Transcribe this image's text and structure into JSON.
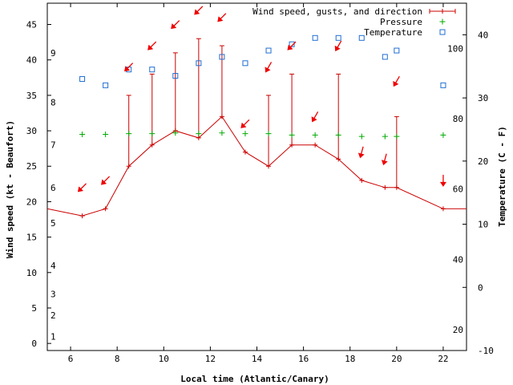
{
  "chart_data": {
    "type": "line",
    "xlabel": "Local time (Atlantic/Canary)",
    "ylabel": "Wind speed (kt - Beaufort)",
    "y2label": "Temperature (C - F)",
    "xlim": [
      5,
      23
    ],
    "ylim": [
      -1,
      48
    ],
    "y2lim": [
      -10,
      45
    ],
    "x_ticks": [
      6,
      8,
      10,
      12,
      14,
      16,
      18,
      20,
      22
    ],
    "y_ticks": [
      0,
      5,
      10,
      15,
      20,
      25,
      30,
      35,
      40,
      45
    ],
    "y2_ticks": [
      -10,
      0,
      10,
      20,
      30,
      40
    ],
    "beaufort_labels": [
      {
        "label": "1",
        "kt": 1
      },
      {
        "label": "2",
        "kt": 4
      },
      {
        "label": "3",
        "kt": 7
      },
      {
        "label": "4",
        "kt": 11
      },
      {
        "label": "5",
        "kt": 17
      },
      {
        "label": "6",
        "kt": 22
      },
      {
        "label": "7",
        "kt": 28
      },
      {
        "label": "8",
        "kt": 34
      },
      {
        "label": "9",
        "kt": 41
      }
    ],
    "fahrenheit_labels": [
      {
        "label": "20",
        "c": -6.7
      },
      {
        "label": "40",
        "c": 4.4
      },
      {
        "label": "60",
        "c": 15.6
      },
      {
        "label": "80",
        "c": 26.7
      },
      {
        "label": "100",
        "c": 37.8
      }
    ],
    "legend": {
      "position": "top-right",
      "entries": [
        "Wind speed, gusts, and direction",
        "Pressure",
        "Temperature"
      ]
    },
    "colors": {
      "wind": "#cc0000",
      "arrow": "#ee0000",
      "pressure": "#00aa00",
      "temperature": "#1f6fd4",
      "axis": "#000000"
    },
    "series": [
      {
        "name": "Wind speed, gusts, and direction",
        "points": [
          {
            "x": 5.0,
            "y": 19
          },
          {
            "x": 6.5,
            "y": 18
          },
          {
            "x": 7.5,
            "y": 19
          },
          {
            "x": 8.5,
            "y": 25,
            "gust": 35
          },
          {
            "x": 9.5,
            "y": 28,
            "gust": 38
          },
          {
            "x": 10.5,
            "y": 30,
            "gust": 41
          },
          {
            "x": 11.5,
            "y": 29,
            "gust": 43
          },
          {
            "x": 12.5,
            "y": 32,
            "gust": 42
          },
          {
            "x": 13.5,
            "y": 27
          },
          {
            "x": 14.5,
            "y": 25,
            "gust": 35
          },
          {
            "x": 15.5,
            "y": 28,
            "gust": 38
          },
          {
            "x": 16.5,
            "y": 28
          },
          {
            "x": 17.5,
            "y": 26,
            "gust": 38
          },
          {
            "x": 18.5,
            "y": 23
          },
          {
            "x": 19.5,
            "y": 22
          },
          {
            "x": 20.0,
            "y": 22,
            "gust": 32
          },
          {
            "x": 22.0,
            "y": 19
          },
          {
            "x": 23.0,
            "y": 19
          }
        ]
      },
      {
        "name": "Pressure",
        "points": [
          {
            "x": 6.5,
            "y": 29.5
          },
          {
            "x": 7.5,
            "y": 29.5
          },
          {
            "x": 8.5,
            "y": 29.6
          },
          {
            "x": 9.5,
            "y": 29.6
          },
          {
            "x": 10.5,
            "y": 29.7
          },
          {
            "x": 11.5,
            "y": 29.6
          },
          {
            "x": 12.5,
            "y": 29.7
          },
          {
            "x": 13.5,
            "y": 29.6
          },
          {
            "x": 14.5,
            "y": 29.6
          },
          {
            "x": 15.5,
            "y": 29.4
          },
          {
            "x": 16.5,
            "y": 29.4
          },
          {
            "x": 17.5,
            "y": 29.4
          },
          {
            "x": 18.5,
            "y": 29.2
          },
          {
            "x": 19.5,
            "y": 29.2
          },
          {
            "x": 20.0,
            "y": 29.2
          },
          {
            "x": 22.0,
            "y": 29.4
          }
        ]
      },
      {
        "name": "Temperature",
        "points": [
          {
            "x": 6.5,
            "y": 33
          },
          {
            "x": 7.5,
            "y": 32
          },
          {
            "x": 8.5,
            "y": 34.5
          },
          {
            "x": 9.5,
            "y": 34.5
          },
          {
            "x": 10.5,
            "y": 33.5
          },
          {
            "x": 11.5,
            "y": 35.5
          },
          {
            "x": 12.5,
            "y": 36.5
          },
          {
            "x": 13.5,
            "y": 35.5
          },
          {
            "x": 14.5,
            "y": 37.5
          },
          {
            "x": 15.5,
            "y": 38.5
          },
          {
            "x": 16.5,
            "y": 39.5
          },
          {
            "x": 17.5,
            "y": 39.5
          },
          {
            "x": 18.5,
            "y": 39.5
          },
          {
            "x": 19.5,
            "y": 36.5
          },
          {
            "x": 20.0,
            "y": 37.5
          },
          {
            "x": 22.0,
            "y": 32
          }
        ]
      }
    ],
    "wind_direction_arrows": [
      {
        "x": 6.5,
        "y": 22,
        "deg": 45
      },
      {
        "x": 7.5,
        "y": 23,
        "deg": 45
      },
      {
        "x": 8.5,
        "y": 39,
        "deg": 45
      },
      {
        "x": 9.5,
        "y": 42,
        "deg": 45
      },
      {
        "x": 10.5,
        "y": 45,
        "deg": 45
      },
      {
        "x": 11.5,
        "y": 47,
        "deg": 45
      },
      {
        "x": 12.5,
        "y": 46,
        "deg": 45
      },
      {
        "x": 13.5,
        "y": 31,
        "deg": 45
      },
      {
        "x": 14.5,
        "y": 39,
        "deg": 30
      },
      {
        "x": 15.5,
        "y": 42,
        "deg": 45
      },
      {
        "x": 16.5,
        "y": 32,
        "deg": 30
      },
      {
        "x": 17.5,
        "y": 42,
        "deg": 30
      },
      {
        "x": 18.5,
        "y": 27,
        "deg": 15
      },
      {
        "x": 19.5,
        "y": 26,
        "deg": 15
      },
      {
        "x": 20.0,
        "y": 37,
        "deg": 30
      },
      {
        "x": 22.0,
        "y": 23,
        "deg": 0
      }
    ]
  }
}
